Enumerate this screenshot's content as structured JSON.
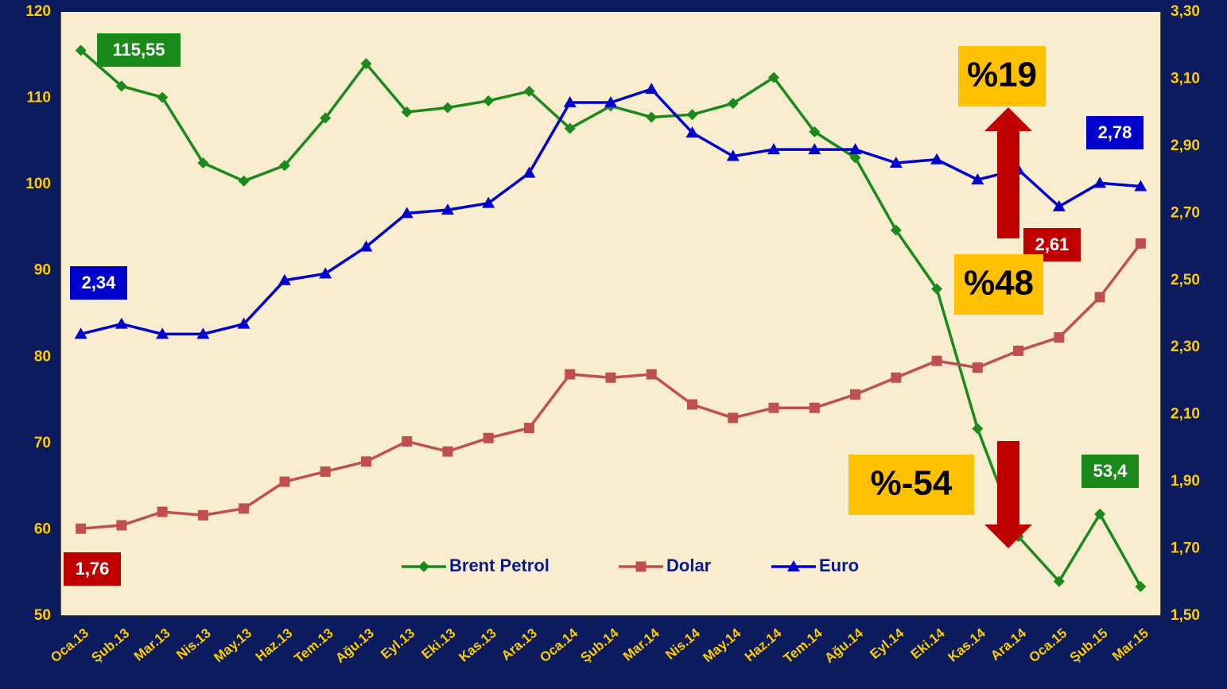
{
  "chart_data": {
    "type": "line",
    "categories": [
      "Oca.13",
      "Şub.13",
      "Mar.13",
      "Nis.13",
      "May.13",
      "Haz.13",
      "Tem.13",
      "Ağu.13",
      "Eyl.13",
      "Eki.13",
      "Kas.13",
      "Ara.13",
      "Oca.14",
      "Şub.14",
      "Mar.14",
      "Nis.14",
      "May.14",
      "Haz.14",
      "Tem.14",
      "Ağu.14",
      "Eyl.14",
      "Eki.14",
      "Kas.14",
      "Ara.14",
      "Oca.15",
      "Şub.15",
      "Mar.15"
    ],
    "series": [
      {
        "name": "Brent Petrol",
        "color": "#1a8a1a",
        "marker": "diamond",
        "values": [
          115.55,
          111.4,
          110.1,
          102.5,
          100.4,
          102.2,
          107.7,
          114.0,
          108.4,
          108.9,
          109.7,
          110.8,
          106.5,
          109.1,
          107.8,
          108.1,
          109.4,
          112.4,
          106.1,
          103.1,
          94.7,
          87.9,
          71.7,
          59.2,
          54.0,
          61.8,
          53.4
        ]
      },
      {
        "name": "Dolar",
        "color": "#c0504d",
        "marker": "square",
        "axis": "y2",
        "values": [
          1.76,
          1.77,
          1.81,
          1.8,
          1.82,
          1.9,
          1.93,
          1.96,
          2.02,
          1.99,
          2.03,
          2.06,
          2.22,
          2.21,
          2.22,
          2.13,
          2.09,
          2.12,
          2.12,
          2.16,
          2.21,
          2.26,
          2.24,
          2.29,
          2.33,
          2.45,
          2.61
        ]
      },
      {
        "name": "Euro",
        "color": "#0000cc",
        "marker": "triangle",
        "axis": "y2",
        "values": [
          2.34,
          2.37,
          2.34,
          2.34,
          2.37,
          2.5,
          2.52,
          2.6,
          2.7,
          2.71,
          2.73,
          2.82,
          3.03,
          3.03,
          3.07,
          2.94,
          2.87,
          2.89,
          2.89,
          2.89,
          2.85,
          2.86,
          2.8,
          2.83,
          2.72,
          2.79,
          2.78
        ]
      }
    ],
    "ylim": [
      50,
      120
    ],
    "yticks": [
      50,
      60,
      70,
      80,
      90,
      100,
      110,
      120
    ],
    "y2lim": [
      1.5,
      3.3
    ],
    "y2ticks": [
      {
        "value": 1.5,
        "label": "1,50"
      },
      {
        "value": 1.7,
        "label": "1,70"
      },
      {
        "value": 1.9,
        "label": "1,90"
      },
      {
        "value": 2.1,
        "label": "2,10"
      },
      {
        "value": 2.3,
        "label": "2,30"
      },
      {
        "value": 2.5,
        "label": "2,50"
      },
      {
        "value": 2.7,
        "label": "2,70"
      },
      {
        "value": 2.9,
        "label": "2,90"
      },
      {
        "value": 3.1,
        "label": "3,10"
      },
      {
        "value": 3.3,
        "label": "3,30"
      }
    ],
    "legend": "bottom",
    "annotations": [
      {
        "text": "115,55",
        "color": "#1a8a1a"
      },
      {
        "text": "2,34",
        "color": "#0000cc"
      },
      {
        "text": "1,76",
        "color": "#c00000"
      },
      {
        "text": "2,78",
        "color": "#0000cc"
      },
      {
        "text": "2,61",
        "color": "#c00000"
      },
      {
        "text": "53,4",
        "color": "#1a8a1a"
      },
      {
        "text": "%19",
        "color": "#ffc000"
      },
      {
        "text": "%48",
        "color": "#ffc000"
      },
      {
        "text": "%-54",
        "color": "#ffc000"
      }
    ]
  }
}
